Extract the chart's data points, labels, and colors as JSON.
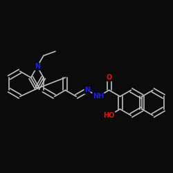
{
  "bg": "#0b0b0b",
  "bc": "#c0c0c0",
  "lw": 1.2,
  "dbo": 0.012,
  "Nc": "#1c1cee",
  "Oc": "#ee1010",
  "fs": 7.0,
  "bl": 0.073,
  "figsize": [
    2.5,
    2.5
  ],
  "dpi": 100,
  "xlim": [
    0.0,
    1.0
  ],
  "ylim": [
    0.0,
    1.0
  ]
}
